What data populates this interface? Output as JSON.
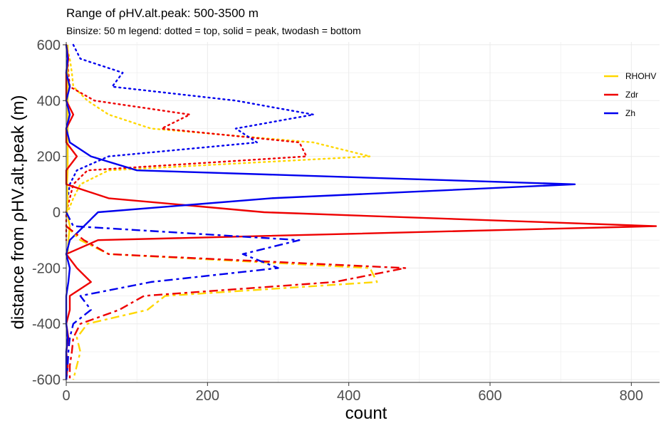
{
  "chart_data": {
    "type": "line",
    "title": "Range of ρHV.alt.peak: 500-3500 m",
    "subtitle": "Binsize: 50 m      legend: dotted = top, solid = peak, twodash = bottom",
    "xlabel": "count",
    "ylabel": "distance from ρHV.alt.peak (m)",
    "xlim": [
      0,
      840
    ],
    "ylim": [
      -610,
      610
    ],
    "x_ticks": [
      0,
      200,
      400,
      600,
      800
    ],
    "y_ticks": [
      -600,
      -400,
      -200,
      0,
      200,
      400,
      600
    ],
    "grid": true,
    "legend_position": "top-right",
    "colors": {
      "RHOHV": "#FFD700",
      "Zdr": "#EE0000",
      "Zh": "#0000EE"
    },
    "legend": [
      {
        "name": "RHOHV",
        "color": "#FFD700"
      },
      {
        "name": "Zdr",
        "color": "#EE0000"
      },
      {
        "name": "Zh",
        "color": "#0000EE"
      }
    ],
    "series": [
      {
        "variable": "RHOHV",
        "linetype": "dotted",
        "points": [
          [
            0,
            600
          ],
          [
            5,
            550
          ],
          [
            8,
            500
          ],
          [
            10,
            450
          ],
          [
            30,
            400
          ],
          [
            60,
            350
          ],
          [
            120,
            300
          ],
          [
            350,
            250
          ],
          [
            430,
            200
          ],
          [
            60,
            150
          ],
          [
            20,
            100
          ],
          [
            10,
            50
          ],
          [
            2,
            0
          ]
        ]
      },
      {
        "variable": "Zdr",
        "linetype": "dotted",
        "points": [
          [
            0,
            600
          ],
          [
            2,
            550
          ],
          [
            3,
            500
          ],
          [
            5,
            450
          ],
          [
            40,
            400
          ],
          [
            175,
            350
          ],
          [
            135,
            300
          ],
          [
            330,
            250
          ],
          [
            340,
            200
          ],
          [
            30,
            150
          ],
          [
            10,
            100
          ],
          [
            5,
            50
          ],
          [
            0,
            0
          ],
          [
            0,
            -50
          ],
          [
            0,
            -100
          ]
        ]
      },
      {
        "variable": "Zh",
        "linetype": "dotted",
        "points": [
          [
            10,
            600
          ],
          [
            20,
            550
          ],
          [
            80,
            500
          ],
          [
            65,
            450
          ],
          [
            240,
            400
          ],
          [
            350,
            350
          ],
          [
            240,
            300
          ],
          [
            270,
            250
          ],
          [
            60,
            200
          ],
          [
            15,
            150
          ],
          [
            5,
            100
          ],
          [
            2,
            50
          ]
        ]
      },
      {
        "variable": "RHOHV",
        "linetype": "solid",
        "points": [
          [
            2,
            600
          ],
          [
            2,
            550
          ],
          [
            2,
            500
          ],
          [
            2,
            450
          ],
          [
            2,
            400
          ],
          [
            2,
            350
          ],
          [
            2,
            300
          ],
          [
            2,
            250
          ],
          [
            2,
            200
          ],
          [
            2,
            150
          ],
          [
            1,
            100
          ],
          [
            2,
            50
          ],
          [
            1,
            0
          ],
          [
            5,
            -50
          ],
          [
            3,
            -100
          ],
          [
            2,
            -150
          ]
        ]
      },
      {
        "variable": "Zdr",
        "linetype": "solid",
        "points": [
          [
            0,
            600
          ],
          [
            3,
            550
          ],
          [
            0,
            500
          ],
          [
            0,
            450
          ],
          [
            0,
            400
          ],
          [
            10,
            350
          ],
          [
            0,
            300
          ],
          [
            0,
            250
          ],
          [
            15,
            200
          ],
          [
            0,
            150
          ],
          [
            0,
            100
          ],
          [
            60,
            50
          ],
          [
            280,
            0
          ],
          [
            835,
            -50
          ],
          [
            45,
            -100
          ],
          [
            0,
            -150
          ],
          [
            15,
            -200
          ],
          [
            35,
            -250
          ],
          [
            5,
            -300
          ],
          [
            5,
            -350
          ],
          [
            0,
            -400
          ],
          [
            3,
            -450
          ],
          [
            0,
            -500
          ],
          [
            2,
            -550
          ],
          [
            0,
            -600
          ]
        ]
      },
      {
        "variable": "Zh",
        "linetype": "solid",
        "points": [
          [
            0,
            600
          ],
          [
            2,
            550
          ],
          [
            0,
            500
          ],
          [
            5,
            450
          ],
          [
            0,
            400
          ],
          [
            5,
            350
          ],
          [
            0,
            300
          ],
          [
            5,
            250
          ],
          [
            35,
            200
          ],
          [
            100,
            150
          ],
          [
            720,
            100
          ],
          [
            290,
            50
          ],
          [
            45,
            0
          ],
          [
            25,
            -50
          ],
          [
            5,
            -100
          ],
          [
            0,
            -150
          ],
          [
            5,
            -200
          ],
          [
            3,
            -250
          ],
          [
            0,
            -300
          ],
          [
            0,
            -350
          ],
          [
            0,
            -400
          ],
          [
            2,
            -450
          ],
          [
            0,
            -500
          ],
          [
            0,
            -550
          ],
          [
            0,
            -600
          ]
        ]
      },
      {
        "variable": "RHOHV",
        "linetype": "twodash",
        "points": [
          [
            0,
            -50
          ],
          [
            20,
            -100
          ],
          [
            60,
            -150
          ],
          [
            430,
            -200
          ],
          [
            440,
            -250
          ],
          [
            140,
            -300
          ],
          [
            115,
            -350
          ],
          [
            30,
            -400
          ],
          [
            15,
            -450
          ],
          [
            20,
            -500
          ],
          [
            15,
            -550
          ],
          [
            10,
            -600
          ]
        ]
      },
      {
        "variable": "Zdr",
        "linetype": "twodash",
        "points": [
          [
            0,
            -50
          ],
          [
            25,
            -100
          ],
          [
            60,
            -150
          ],
          [
            480,
            -200
          ],
          [
            380,
            -250
          ],
          [
            110,
            -300
          ],
          [
            75,
            -350
          ],
          [
            20,
            -400
          ],
          [
            10,
            -450
          ],
          [
            8,
            -500
          ],
          [
            5,
            -550
          ],
          [
            5,
            -600
          ]
        ]
      },
      {
        "variable": "Zh",
        "linetype": "twodash",
        "points": [
          [
            0,
            0
          ],
          [
            10,
            -50
          ],
          [
            330,
            -100
          ],
          [
            250,
            -150
          ],
          [
            300,
            -200
          ],
          [
            120,
            -250
          ],
          [
            20,
            -300
          ],
          [
            35,
            -350
          ],
          [
            10,
            -400
          ],
          [
            5,
            -450
          ],
          [
            3,
            -500
          ],
          [
            2,
            -550
          ],
          [
            0,
            -600
          ]
        ]
      }
    ]
  }
}
